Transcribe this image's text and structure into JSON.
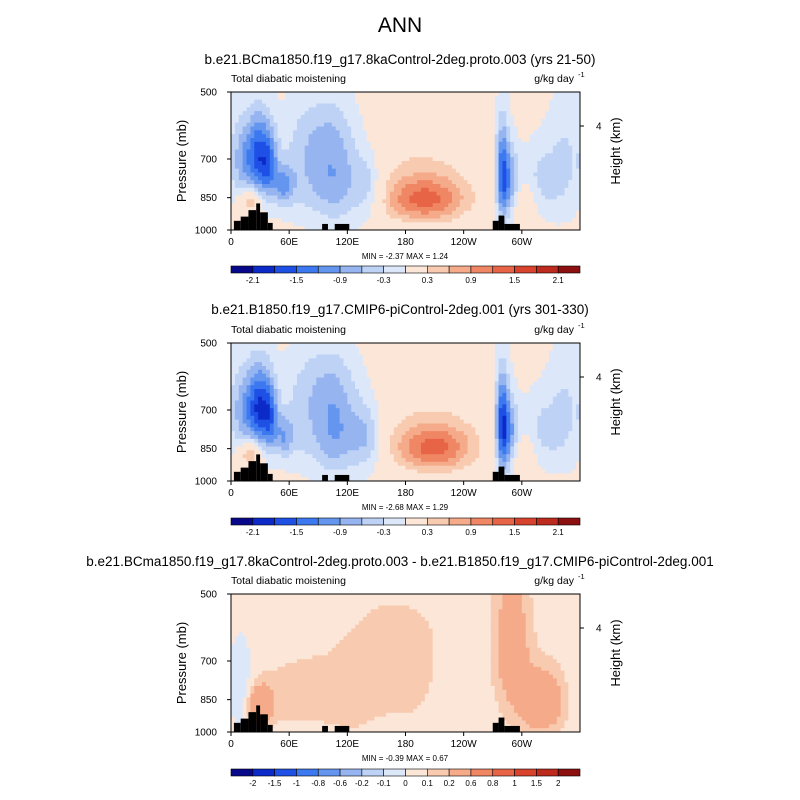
{
  "page": {
    "title": "ANN"
  },
  "colors": {
    "palette_main": [
      "#08088a",
      "#0c2ac8",
      "#1e50e6",
      "#3c78f0",
      "#6496f0",
      "#96b4f0",
      "#bed2f5",
      "#dce8fa",
      "#fbe6d8",
      "#f8cbb0",
      "#f5aa8a",
      "#f08764",
      "#e86446",
      "#d8432d",
      "#bd2b1e",
      "#8c1010"
    ],
    "palette_diff": [
      "#08088a",
      "#0c2ac8",
      "#1e50e6",
      "#3c78f0",
      "#6496f0",
      "#96b4f0",
      "#bed2f5",
      "#dce8fa",
      "#fbe6d8",
      "#f8cbb0",
      "#f5aa8a",
      "#f08764",
      "#e86446",
      "#d8432d",
      "#bd2b1e",
      "#8c1010"
    ],
    "topography": "#000000"
  },
  "chart_data": [
    {
      "type": "heatmap",
      "title": "b.e21.BCma1850.f19_g17.8kaControl-2deg.proto.003 (yrs 21-50)",
      "left_label": "Total diabatic moistening",
      "right_label": "g/kg day",
      "right_label_sup": "-1",
      "ylabel": "Pressure (mb)",
      "ylabel_right": "Height (km)",
      "y_ticks": [
        "500",
        "700",
        "850",
        "1000"
      ],
      "y_right_ticks": [
        "4"
      ],
      "x_ticks": [
        "0",
        "60E",
        "120E",
        "180",
        "120W",
        "60W"
      ],
      "stats": "MIN = -2.37  MAX =  1.24",
      "colorbar_labels": [
        "-2.1",
        "-1.5",
        "-0.9",
        "-0.3",
        "0.3",
        "0.9",
        "1.5",
        "2.1"
      ],
      "field": [
        {
          "lon": 28,
          "p": 690,
          "sx": 8,
          "sp": 100,
          "a": -1.6
        },
        {
          "lon": 40,
          "p": 720,
          "sx": 6,
          "sp": 90,
          "a": -1.1
        },
        {
          "lon": 20,
          "p": 870,
          "sx": 8,
          "sp": 40,
          "a": 0.9
        },
        {
          "lon": 12,
          "p": 700,
          "sx": 8,
          "sp": 100,
          "a": -0.8
        },
        {
          "lon": 55,
          "p": 800,
          "sx": 7,
          "sp": 60,
          "a": -0.9
        },
        {
          "lon": 80,
          "p": 760,
          "sx": 20,
          "sp": 120,
          "a": -0.6
        },
        {
          "lon": 110,
          "p": 780,
          "sx": 15,
          "sp": 130,
          "a": -0.8
        },
        {
          "lon": 140,
          "p": 800,
          "sx": 12,
          "sp": 100,
          "a": -0.7
        },
        {
          "lon": 95,
          "p": 600,
          "sx": 25,
          "sp": 80,
          "a": -0.4
        },
        {
          "lon": 200,
          "p": 860,
          "sx": 30,
          "sp": 70,
          "a": 1.2
        },
        {
          "lon": 200,
          "p": 790,
          "sx": 50,
          "sp": 130,
          "a": 0.4
        },
        {
          "lon": 190,
          "p": 600,
          "sx": 40,
          "sp": 100,
          "a": 0.2
        },
        {
          "lon": 280,
          "p": 760,
          "sx": 5,
          "sp": 130,
          "a": -1.7
        },
        {
          "lon": 290,
          "p": 800,
          "sx": 6,
          "sp": 100,
          "a": -0.9
        },
        {
          "lon": 300,
          "p": 870,
          "sx": 10,
          "sp": 60,
          "a": 0.5
        },
        {
          "lon": 320,
          "p": 780,
          "sx": 15,
          "sp": 100,
          "a": -0.5
        },
        {
          "lon": 345,
          "p": 700,
          "sx": 12,
          "sp": 150,
          "a": -0.4
        }
      ],
      "background": -0.2,
      "terrain": [
        {
          "lon0": 3,
          "lon1": 10,
          "p": 955
        },
        {
          "lon0": 10,
          "lon1": 18,
          "p": 935
        },
        {
          "lon0": 18,
          "lon1": 26,
          "p": 905
        },
        {
          "lon0": 26,
          "lon1": 30,
          "p": 875
        },
        {
          "lon0": 30,
          "lon1": 38,
          "p": 915
        },
        {
          "lon0": 38,
          "lon1": 43,
          "p": 965
        },
        {
          "lon0": 94,
          "lon1": 100,
          "p": 970
        },
        {
          "lon0": 107,
          "lon1": 122,
          "p": 970
        },
        {
          "lon0": 270,
          "lon1": 276,
          "p": 955
        },
        {
          "lon0": 276,
          "lon1": 282,
          "p": 930
        },
        {
          "lon0": 282,
          "lon1": 298,
          "p": 970
        }
      ]
    },
    {
      "type": "heatmap",
      "title": "b.e21.B1850.f19_g17.CMIP6-piControl-2deg.001 (yrs 301-330)",
      "left_label": "Total diabatic moistening",
      "right_label": "g/kg day",
      "right_label_sup": "-1",
      "ylabel": "Pressure (mb)",
      "ylabel_right": "Height (km)",
      "y_ticks": [
        "500",
        "700",
        "850",
        "1000"
      ],
      "y_right_ticks": [
        "4"
      ],
      "x_ticks": [
        "0",
        "60E",
        "120E",
        "180",
        "120W",
        "60W"
      ],
      "stats": "MIN = -2.68  MAX =  1.29",
      "colorbar_labels": [
        "-2.1",
        "-1.5",
        "-0.9",
        "-0.3",
        "0.3",
        "0.9",
        "1.5",
        "2.1"
      ],
      "field": [
        {
          "lon": 28,
          "p": 690,
          "sx": 8,
          "sp": 100,
          "a": -1.7
        },
        {
          "lon": 40,
          "p": 720,
          "sx": 6,
          "sp": 90,
          "a": -1.2
        },
        {
          "lon": 20,
          "p": 870,
          "sx": 8,
          "sp": 40,
          "a": 1.0
        },
        {
          "lon": 12,
          "p": 700,
          "sx": 8,
          "sp": 100,
          "a": -0.8
        },
        {
          "lon": 55,
          "p": 800,
          "sx": 7,
          "sp": 60,
          "a": -0.8
        },
        {
          "lon": 80,
          "p": 760,
          "sx": 20,
          "sp": 120,
          "a": -0.5
        },
        {
          "lon": 110,
          "p": 780,
          "sx": 15,
          "sp": 130,
          "a": -0.9
        },
        {
          "lon": 140,
          "p": 800,
          "sx": 12,
          "sp": 100,
          "a": -0.8
        },
        {
          "lon": 95,
          "p": 600,
          "sx": 25,
          "sp": 80,
          "a": -0.4
        },
        {
          "lon": 210,
          "p": 850,
          "sx": 28,
          "sp": 70,
          "a": 1.2
        },
        {
          "lon": 205,
          "p": 790,
          "sx": 50,
          "sp": 130,
          "a": 0.4
        },
        {
          "lon": 195,
          "p": 600,
          "sx": 40,
          "sp": 100,
          "a": 0.1
        },
        {
          "lon": 280,
          "p": 760,
          "sx": 5,
          "sp": 130,
          "a": -2.0
        },
        {
          "lon": 290,
          "p": 800,
          "sx": 6,
          "sp": 100,
          "a": -0.9
        },
        {
          "lon": 300,
          "p": 870,
          "sx": 10,
          "sp": 60,
          "a": 0.5
        },
        {
          "lon": 320,
          "p": 780,
          "sx": 15,
          "sp": 100,
          "a": -0.5
        },
        {
          "lon": 345,
          "p": 700,
          "sx": 12,
          "sp": 150,
          "a": -0.4
        }
      ],
      "background": -0.2,
      "terrain": [
        {
          "lon0": 3,
          "lon1": 10,
          "p": 955
        },
        {
          "lon0": 10,
          "lon1": 18,
          "p": 935
        },
        {
          "lon0": 18,
          "lon1": 26,
          "p": 905
        },
        {
          "lon0": 26,
          "lon1": 30,
          "p": 875
        },
        {
          "lon0": 30,
          "lon1": 38,
          "p": 915
        },
        {
          "lon0": 38,
          "lon1": 43,
          "p": 965
        },
        {
          "lon0": 94,
          "lon1": 100,
          "p": 970
        },
        {
          "lon0": 107,
          "lon1": 122,
          "p": 970
        },
        {
          "lon0": 270,
          "lon1": 276,
          "p": 955
        },
        {
          "lon0": 276,
          "lon1": 282,
          "p": 930
        },
        {
          "lon0": 282,
          "lon1": 298,
          "p": 970
        }
      ]
    },
    {
      "type": "heatmap",
      "title": "b.e21.BCma1850.f19_g17.8kaControl-2deg.proto.003 - b.e21.B1850.f19_g17.CMIP6-piControl-2deg.001",
      "left_label": "Total diabatic moistening",
      "right_label": "g/kg day",
      "right_label_sup": "-1",
      "ylabel": "Pressure (mb)",
      "ylabel_right": "Height (km)",
      "y_ticks": [
        "500",
        "700",
        "850",
        "1000"
      ],
      "y_right_ticks": [
        "4"
      ],
      "x_ticks": [
        "0",
        "60E",
        "120E",
        "180",
        "120W",
        "60W"
      ],
      "stats": "MIN = -0.39  MAX =  0.67",
      "colorbar_labels": [
        "-2",
        "-1.5",
        "-1",
        "-0.8",
        "-0.6",
        "-0.2",
        "-0.1",
        "0",
        "0.1",
        "0.2",
        "0.6",
        "0.8",
        "1",
        "1.5",
        "2"
      ],
      "field": [
        {
          "lon": 30,
          "p": 880,
          "sx": 8,
          "sp": 60,
          "a": 0.45
        },
        {
          "lon": 10,
          "p": 800,
          "sx": 10,
          "sp": 150,
          "a": -0.12
        },
        {
          "lon": 70,
          "p": 830,
          "sx": 25,
          "sp": 80,
          "a": 0.12
        },
        {
          "lon": 120,
          "p": 850,
          "sx": 15,
          "sp": 80,
          "a": 0.08
        },
        {
          "lon": 170,
          "p": 720,
          "sx": 60,
          "sp": 200,
          "a": 0.08
        },
        {
          "lon": 290,
          "p": 650,
          "sx": 12,
          "sp": 150,
          "a": 0.3
        },
        {
          "lon": 320,
          "p": 860,
          "sx": 15,
          "sp": 90,
          "a": 0.4
        },
        {
          "lon": 240,
          "p": 800,
          "sx": 20,
          "sp": 150,
          "a": -0.06
        }
      ],
      "background": 0.05,
      "terrain": [
        {
          "lon0": 3,
          "lon1": 10,
          "p": 955
        },
        {
          "lon0": 10,
          "lon1": 18,
          "p": 935
        },
        {
          "lon0": 18,
          "lon1": 26,
          "p": 905
        },
        {
          "lon0": 26,
          "lon1": 30,
          "p": 875
        },
        {
          "lon0": 30,
          "lon1": 38,
          "p": 915
        },
        {
          "lon0": 38,
          "lon1": 43,
          "p": 965
        },
        {
          "lon0": 94,
          "lon1": 100,
          "p": 970
        },
        {
          "lon0": 107,
          "lon1": 122,
          "p": 970
        },
        {
          "lon0": 270,
          "lon1": 276,
          "p": 955
        },
        {
          "lon0": 276,
          "lon1": 282,
          "p": 930
        },
        {
          "lon0": 282,
          "lon1": 298,
          "p": 970
        }
      ]
    }
  ]
}
